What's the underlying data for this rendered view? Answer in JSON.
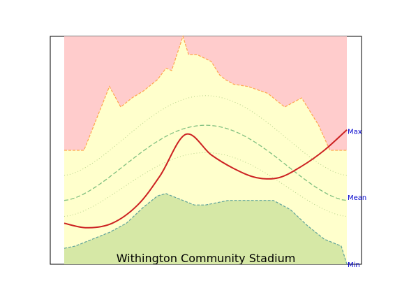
{
  "chart_data": {
    "type": "area",
    "title": "Withington Community Stadium",
    "xlim": [
      0,
      1
    ],
    "ylim": [
      0,
      1
    ],
    "right_labels": [
      {
        "text": "Max",
        "y": 0.585
      },
      {
        "text": "Mean",
        "y": 0.295
      },
      {
        "text": "Min",
        "y": 0.0
      }
    ],
    "upper_envelope": {
      "x": [
        0.0,
        0.07,
        0.16,
        0.2,
        0.24,
        0.28,
        0.33,
        0.36,
        0.38,
        0.42,
        0.44,
        0.47,
        0.52,
        0.55,
        0.57,
        0.6,
        0.65,
        0.72,
        0.78,
        0.84,
        0.9,
        0.94,
        1.0
      ],
      "y": [
        0.5,
        0.5,
        0.78,
        0.69,
        0.73,
        0.76,
        0.81,
        0.86,
        0.85,
        1.0,
        0.92,
        0.92,
        0.89,
        0.83,
        0.81,
        0.79,
        0.78,
        0.75,
        0.69,
        0.73,
        0.61,
        0.5,
        0.5
      ]
    },
    "lower_envelope": {
      "x": [
        0.0,
        0.04,
        0.1,
        0.16,
        0.22,
        0.28,
        0.33,
        0.36,
        0.38,
        0.42,
        0.46,
        0.5,
        0.54,
        0.58,
        0.62,
        0.66,
        0.7,
        0.74,
        0.8,
        0.86,
        0.92,
        0.98,
        1.0
      ],
      "y": [
        0.07,
        0.08,
        0.11,
        0.14,
        0.18,
        0.25,
        0.3,
        0.31,
        0.3,
        0.28,
        0.26,
        0.26,
        0.27,
        0.28,
        0.28,
        0.28,
        0.28,
        0.28,
        0.24,
        0.17,
        0.11,
        0.08,
        0.0
      ]
    },
    "percentiles": {
      "outer_upper": {
        "peak": 0.74,
        "base": 0.39,
        "center": 0.5
      },
      "mean": {
        "peak": 0.61,
        "base": 0.28,
        "center": 0.5
      },
      "outer_lower": {
        "peak": 0.49,
        "base": 0.21,
        "center": 0.5
      }
    },
    "current": {
      "x": [
        0.0,
        0.08,
        0.17,
        0.26,
        0.34,
        0.43,
        0.52,
        0.6,
        0.68,
        0.76,
        0.84,
        0.92,
        1.0
      ],
      "y": [
        0.18,
        0.16,
        0.18,
        0.26,
        0.39,
        0.57,
        0.48,
        0.42,
        0.38,
        0.38,
        0.43,
        0.5,
        0.59
      ]
    },
    "colors": {
      "above": "#ffcccc",
      "band": "#ffffcc",
      "below": "#d6e8a6",
      "upper_edge": "#ffa64d",
      "lower_edge": "#5fa39a",
      "mean_line": "#7fbf7f",
      "percentile_line": "#b5d18a",
      "current_line": "#cc2222",
      "label_color": "#0000cc"
    }
  }
}
